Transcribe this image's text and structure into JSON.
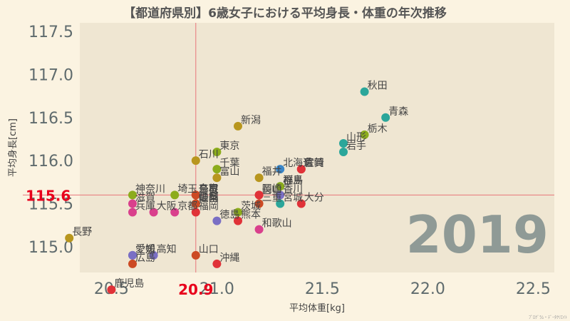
{
  "chart_data": {
    "type": "scatter",
    "title": "【都道府県別】6歳女子における平均身長・体重の年次推移",
    "xlabel": "平均体重[kg]",
    "ylabel": "平均身長[cm]",
    "xlim": [
      20.35,
      22.6
    ],
    "ylim": [
      114.7,
      117.6
    ],
    "xticks": [
      20.5,
      21.0,
      21.5,
      22.0,
      22.5
    ],
    "xtick_labels": [
      "20.5",
      "21.0",
      "21.5",
      "22.0",
      "22.5"
    ],
    "yticks": [
      115.0,
      115.5,
      116.0,
      116.5,
      117.0,
      117.5
    ],
    "ytick_labels": [
      "115.0",
      "115.5",
      "116.0",
      "116.5",
      "117.0",
      "117.5"
    ],
    "mean_x": 20.9,
    "mean_y": 115.6,
    "mean_x_label": "20.9",
    "mean_y_label": "115.6",
    "year": "2019",
    "credit": "ﾌﾟﾛｸﾞﾗﾑ・ﾃﾞｰﾀｸﾘｴｲﾄ",
    "points": [
      {
        "name": "北海道",
        "x": 21.3,
        "y": 115.9,
        "color": "#3a86c8"
      },
      {
        "name": "青森",
        "x": 21.8,
        "y": 116.5,
        "color": "#2ba69a"
      },
      {
        "name": "岩手",
        "x": 21.6,
        "y": 116.1,
        "color": "#2ba69a"
      },
      {
        "name": "宮城",
        "x": 21.3,
        "y": 115.5,
        "color": "#2ba69a"
      },
      {
        "name": "秋田",
        "x": 21.7,
        "y": 116.8,
        "color": "#2ba69a"
      },
      {
        "name": "山形",
        "x": 21.6,
        "y": 116.2,
        "color": "#2ba69a"
      },
      {
        "name": "福島",
        "x": 21.3,
        "y": 115.7,
        "color": "#2ba69a"
      },
      {
        "name": "茨城",
        "x": 21.1,
        "y": 115.4,
        "color": "#8cac1c"
      },
      {
        "name": "栃木",
        "x": 21.7,
        "y": 116.3,
        "color": "#8cac1c"
      },
      {
        "name": "群馬",
        "x": 21.3,
        "y": 115.7,
        "color": "#8cac1c"
      },
      {
        "name": "埼玉",
        "x": 20.8,
        "y": 115.6,
        "color": "#8cac1c"
      },
      {
        "name": "千葉",
        "x": 21.0,
        "y": 115.9,
        "color": "#8cac1c"
      },
      {
        "name": "東京",
        "x": 21.0,
        "y": 116.1,
        "color": "#8cac1c"
      },
      {
        "name": "神奈川",
        "x": 20.6,
        "y": 115.6,
        "color": "#8cac1c"
      },
      {
        "name": "新潟",
        "x": 21.1,
        "y": 116.4,
        "color": "#b8961e"
      },
      {
        "name": "富山",
        "x": 21.0,
        "y": 115.8,
        "color": "#b8961e"
      },
      {
        "name": "石川",
        "x": 20.9,
        "y": 116.0,
        "color": "#b8961e"
      },
      {
        "name": "福井",
        "x": 21.2,
        "y": 115.8,
        "color": "#b8961e"
      },
      {
        "name": "山梨",
        "x": 20.9,
        "y": 115.5,
        "color": "#b8961e"
      },
      {
        "name": "長野",
        "x": 20.3,
        "y": 115.1,
        "color": "#b8961e"
      },
      {
        "name": "岐阜",
        "x": 20.9,
        "y": 115.5,
        "color": "#cc4a24"
      },
      {
        "name": "静岡",
        "x": 20.9,
        "y": 115.5,
        "color": "#cc4a24"
      },
      {
        "name": "愛知",
        "x": 20.6,
        "y": 114.9,
        "color": "#7a6fc4"
      },
      {
        "name": "三重",
        "x": 21.2,
        "y": 115.5,
        "color": "#cc4a24"
      },
      {
        "name": "滋賀",
        "x": 20.6,
        "y": 115.5,
        "color": "#d9408c"
      },
      {
        "name": "京都",
        "x": 20.8,
        "y": 115.4,
        "color": "#d9408c"
      },
      {
        "name": "大阪",
        "x": 20.7,
        "y": 115.4,
        "color": "#d9408c"
      },
      {
        "name": "兵庫",
        "x": 20.6,
        "y": 115.4,
        "color": "#d9408c"
      },
      {
        "name": "奈良",
        "x": 20.9,
        "y": 115.6,
        "color": "#d9408c"
      },
      {
        "name": "和歌山",
        "x": 21.2,
        "y": 115.2,
        "color": "#d9408c"
      },
      {
        "name": "鳥取",
        "x": 20.9,
        "y": 115.6,
        "color": "#cc4a24"
      },
      {
        "name": "島根",
        "x": 20.9,
        "y": 115.6,
        "color": "#cc4a24"
      },
      {
        "name": "岡山",
        "x": 21.2,
        "y": 115.6,
        "color": "#e03238"
      },
      {
        "name": "広島",
        "x": 20.6,
        "y": 114.8,
        "color": "#cc4a24"
      },
      {
        "name": "山口",
        "x": 20.9,
        "y": 114.9,
        "color": "#cc4a24"
      },
      {
        "name": "徳島",
        "x": 21.0,
        "y": 115.3,
        "color": "#7a6fc4"
      },
      {
        "name": "香川",
        "x": 21.3,
        "y": 115.6,
        "color": "#7a6fc4"
      },
      {
        "name": "愛媛",
        "x": 20.6,
        "y": 114.9,
        "color": "#7a6fc4"
      },
      {
        "name": "高知",
        "x": 20.7,
        "y": 114.9,
        "color": "#7a6fc4"
      },
      {
        "name": "福岡",
        "x": 20.9,
        "y": 115.4,
        "color": "#e03238"
      },
      {
        "name": "佐賀",
        "x": 21.4,
        "y": 115.9,
        "color": "#e03238"
      },
      {
        "name": "長崎",
        "x": 21.2,
        "y": 115.6,
        "color": "#e03238"
      },
      {
        "name": "熊本",
        "x": 21.1,
        "y": 115.3,
        "color": "#e03238"
      },
      {
        "name": "大分",
        "x": 21.4,
        "y": 115.5,
        "color": "#e03238"
      },
      {
        "name": "宮崎",
        "x": 21.4,
        "y": 115.9,
        "color": "#e03238"
      },
      {
        "name": "鹿児島",
        "x": 20.5,
        "y": 114.5,
        "color": "#e03238"
      },
      {
        "name": "沖縄",
        "x": 21.0,
        "y": 114.8,
        "color": "#e03238"
      }
    ]
  },
  "colors": {
    "background": "#fbf3e1",
    "plot_background": "#efe6d2",
    "mean_line": "#e8757a",
    "accent": "#e8001c",
    "year": "#8f9a96"
  }
}
